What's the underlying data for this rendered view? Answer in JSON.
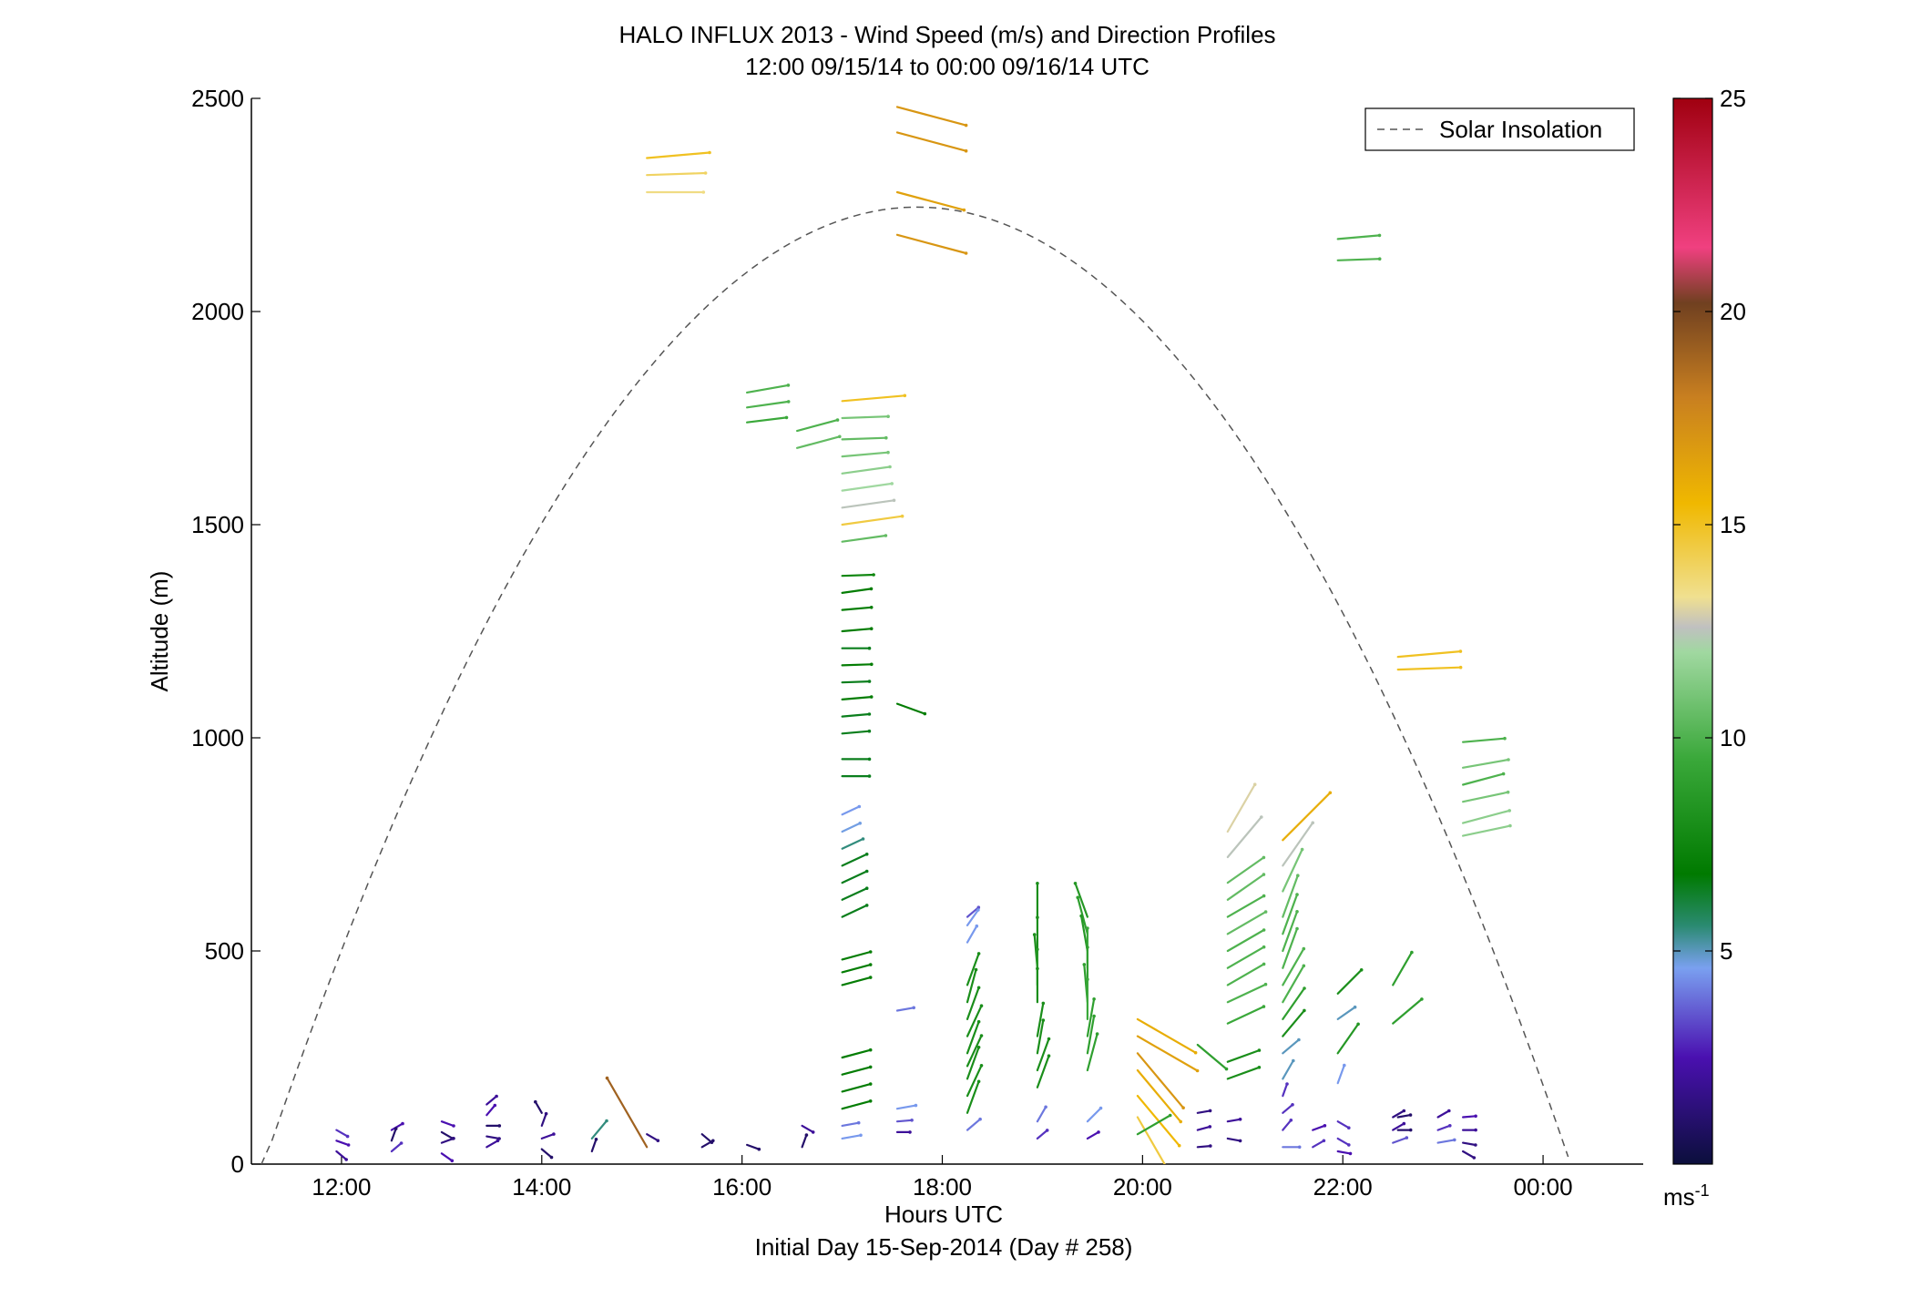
{
  "chart_data": {
    "type": "quiver",
    "title": "HALO INFLUX 2013 - Wind Speed (m/s) and Direction Profiles",
    "subtitle": "12:00 09/15/14 to 00:00 09/16/14  UTC",
    "xlabel": "Hours UTC",
    "xlabel2": "Initial Day 15-Sep-2014 (Day # 258)",
    "ylabel": "Altitude (m)",
    "xlim": [
      11.1,
      25.0
    ],
    "ylim": [
      0,
      2500
    ],
    "x_ticks": [
      {
        "v": 12,
        "label": "12:00"
      },
      {
        "v": 14,
        "label": "14:00"
      },
      {
        "v": 16,
        "label": "16:00"
      },
      {
        "v": 18,
        "label": "18:00"
      },
      {
        "v": 20,
        "label": "20:00"
      },
      {
        "v": 22,
        "label": "22:00"
      },
      {
        "v": 24,
        "label": "00:00"
      }
    ],
    "y_ticks": [
      0,
      500,
      1000,
      1500,
      2000,
      2500
    ],
    "legend": {
      "label": "Solar Insolation",
      "position": "top-right"
    },
    "solar_insolation": {
      "start_hour": 11.2,
      "end_hour": 24.25,
      "peak_hour": 17.75,
      "peak_altitude": 2245
    },
    "colorbar": {
      "min": 0,
      "max": 25,
      "ticks": [
        5,
        10,
        15,
        20,
        25
      ],
      "unit": "ms-1",
      "stops": [
        {
          "v": 0,
          "c": "#0b0f3c"
        },
        {
          "v": 2.5,
          "c": "#4a10b0"
        },
        {
          "v": 4.6,
          "c": "#7aa0f0"
        },
        {
          "v": 5.6,
          "c": "#2a8a70"
        },
        {
          "v": 6.8,
          "c": "#007a00"
        },
        {
          "v": 9.5,
          "c": "#3aa83a"
        },
        {
          "v": 12,
          "c": "#a0d8a0"
        },
        {
          "v": 12.6,
          "c": "#c0c0c0"
        },
        {
          "v": 13.3,
          "c": "#f0e090"
        },
        {
          "v": 15.5,
          "c": "#f0b800"
        },
        {
          "v": 18,
          "c": "#c87f20"
        },
        {
          "v": 20.2,
          "c": "#704020"
        },
        {
          "v": 21.5,
          "c": "#f04080"
        },
        {
          "v": 25,
          "c": "#a00010"
        }
      ]
    },
    "profiles": [
      {
        "t": 11.95,
        "h": [
          80,
          55,
          30
        ],
        "s": [
          3,
          2.5,
          2
        ],
        "d": [
          300,
          290,
          310
        ]
      },
      {
        "t": 12.5,
        "h": [
          80,
          55,
          30
        ],
        "s": [
          2.5,
          1,
          3
        ],
        "d": [
          240,
          200,
          230
        ]
      },
      {
        "t": 13.0,
        "h": [
          100,
          75,
          50,
          25
        ],
        "s": [
          2.5,
          1,
          1.5,
          2.5
        ],
        "d": [
          290,
          300,
          250,
          305
        ]
      },
      {
        "t": 13.45,
        "h": [
          140,
          115,
          90,
          65,
          40
        ],
        "s": [
          2,
          2.5,
          1,
          1.5,
          2
        ],
        "d": [
          230,
          220,
          270,
          280,
          240
        ]
      },
      {
        "t": 14.0,
        "h": [
          120,
          90,
          60,
          35
        ],
        "s": [
          1,
          1.5,
          2,
          1
        ],
        "d": [
          150,
          200,
          250,
          310
        ]
      },
      {
        "t": 14.5,
        "h": [
          60,
          30
        ],
        "s": [
          5.5,
          1
        ],
        "d": [
          220,
          200
        ]
      },
      {
        "t": 15.05,
        "h": [
          2360,
          2320,
          2280
        ],
        "s": [
          15,
          14,
          13.5
        ],
        "d": [
          265,
          268,
          270
        ]
      },
      {
        "t": 15.05,
        "h": [
          70,
          40
        ],
        "s": [
          1.5,
          19
        ],
        "d": [
          300,
          150
        ]
      },
      {
        "t": 15.6,
        "h": [
          70,
          40
        ],
        "s": [
          1,
          1
        ],
        "d": [
          310,
          240
        ]
      },
      {
        "t": 16.05,
        "h": [
          1810,
          1775,
          1740
        ],
        "s": [
          10,
          10,
          9.5
        ],
        "d": [
          260,
          262,
          263
        ]
      },
      {
        "t": 16.05,
        "h": [
          45
        ],
        "s": [
          1
        ],
        "d": [
          290
        ]
      },
      {
        "t": 16.55,
        "h": [
          1720,
          1680
        ],
        "s": [
          10,
          10.5
        ],
        "d": [
          255,
          255
        ]
      },
      {
        "t": 16.6,
        "h": [
          90,
          40
        ],
        "s": [
          2,
          1
        ],
        "d": [
          300,
          200
        ]
      },
      {
        "t": 17.0,
        "h": [
          1790,
          1750,
          1700,
          1660,
          1620,
          1580,
          1540,
          1500,
          1460,
          1380,
          1340,
          1300,
          1250,
          1210,
          1170,
          1130,
          1090,
          1050,
          1010,
          950,
          910,
          820,
          780,
          740,
          700,
          660,
          620,
          580,
          480,
          450,
          420,
          250,
          210,
          170,
          130,
          90,
          60
        ],
        "s": [
          15,
          11,
          10.5,
          11,
          11.5,
          12,
          12.5,
          14.5,
          10.5,
          7.5,
          7,
          7,
          7,
          6.5,
          7,
          6.5,
          7,
          6.5,
          6.5,
          6.5,
          6.5,
          4.5,
          4.7,
          5.5,
          6.5,
          6.5,
          6.5,
          6.5,
          7,
          7,
          7,
          7,
          7,
          7,
          7,
          4,
          4.5
        ],
        "d": [
          265,
          268,
          268,
          265,
          262,
          262,
          262,
          262,
          262,
          268,
          262,
          265,
          265,
          270,
          268,
          268,
          265,
          265,
          265,
          270,
          270,
          245,
          245,
          245,
          245,
          245,
          245,
          245,
          255,
          255,
          255,
          255,
          255,
          255,
          255,
          260,
          260
        ]
      },
      {
        "t": 17.55,
        "h": [
          2480,
          2420,
          2280,
          2180
        ],
        "s": [
          17,
          17,
          16.5,
          17
        ],
        "d": [
          285,
          285,
          285,
          285
        ]
      },
      {
        "t": 17.55,
        "h": [
          1080
        ],
        "s": [
          7
        ],
        "d": [
          290
        ]
      },
      {
        "t": 17.55,
        "h": [
          360,
          130,
          100,
          75
        ],
        "s": [
          4,
          4.5,
          3.5,
          2
        ],
        "d": [
          260,
          260,
          265,
          270
        ]
      },
      {
        "t": 18.25,
        "h": [
          580,
          560,
          520,
          420,
          380,
          340,
          300,
          260,
          230,
          200,
          160,
          120,
          80
        ],
        "s": [
          3.5,
          4.5,
          4.5,
          8,
          8,
          8,
          8,
          8,
          8,
          8,
          8,
          8,
          4
        ],
        "d": [
          230,
          215,
          210,
          200,
          195,
          200,
          205,
          200,
          205,
          200,
          205,
          200,
          230
        ]
      },
      {
        "t": 18.95,
        "h": [
          580,
          500,
          460,
          420,
          380,
          300,
          260,
          220,
          180,
          100,
          60
        ],
        "s": [
          8,
          8,
          8,
          8.5,
          8,
          8,
          8,
          8,
          8,
          4,
          3
        ],
        "d": [
          180,
          180,
          175,
          180,
          180,
          190,
          190,
          200,
          200,
          210,
          230
        ]
      },
      {
        "t": 19.45,
        "h": [
          580,
          540,
          500,
          460,
          420,
          380,
          340,
          300,
          260,
          220,
          100,
          60
        ],
        "s": [
          8.5,
          9,
          8.5,
          9.5,
          9,
          9,
          9.5,
          9,
          9,
          9,
          4.5,
          2.5
        ],
        "d": [
          160,
          165,
          170,
          180,
          180,
          175,
          180,
          190,
          190,
          195,
          225,
          240
        ]
      },
      {
        "t": 19.95,
        "h": [
          340,
          300,
          260,
          220,
          160,
          110,
          70
        ],
        "s": [
          16,
          16.5,
          17,
          16,
          15.5,
          14.5,
          9
        ],
        "d": [
          300,
          300,
          320,
          320,
          320,
          330,
          240
        ]
      },
      {
        "t": 20.55,
        "h": [
          280,
          120,
          80,
          40
        ],
        "s": [
          9,
          1.5,
          2,
          1.5
        ],
        "d": [
          310,
          260,
          255,
          265
        ]
      },
      {
        "t": 20.85,
        "h": [
          780,
          720,
          660,
          620,
          580,
          540,
          500,
          460,
          420,
          380,
          330,
          240,
          200,
          100,
          60
        ],
        "s": [
          13,
          12.5,
          10.5,
          10.5,
          10,
          10.5,
          10,
          10,
          10,
          10,
          9.5,
          8,
          8,
          2,
          1.5
        ],
        "d": [
          210,
          220,
          235,
          235,
          240,
          240,
          240,
          240,
          240,
          245,
          245,
          250,
          250,
          260,
          280
        ]
      },
      {
        "t": 21.4,
        "h": [
          760,
          700,
          640,
          580,
          540,
          500,
          460,
          420,
          380,
          340,
          300,
          260,
          200,
          160,
          120,
          80,
          40
        ],
        "s": [
          16,
          12.5,
          11,
          10.5,
          10,
          10,
          10,
          10,
          10,
          9,
          8,
          5,
          5,
          3,
          3,
          3,
          4
        ],
        "d": [
          225,
          215,
          205,
          200,
          200,
          200,
          200,
          210,
          210,
          215,
          220,
          230,
          210,
          200,
          230,
          220,
          270
        ]
      },
      {
        "t": 21.7,
        "h": [
          80,
          40
        ],
        "s": [
          2.5,
          3
        ],
        "d": [
          250,
          240
        ]
      },
      {
        "t": 21.95,
        "h": [
          2170,
          2120
        ],
        "s": [
          10,
          10
        ],
        "d": [
          265,
          268
        ]
      },
      {
        "t": 21.95,
        "h": [
          400,
          340,
          260,
          190
        ],
        "s": [
          8,
          5,
          8.5,
          4.5
        ],
        "d": [
          225,
          235,
          215,
          200
        ]
      },
      {
        "t": 21.95,
        "h": [
          100,
          60,
          30
        ],
        "s": [
          3,
          3,
          2.5
        ],
        "d": [
          300,
          300,
          280
        ]
      },
      {
        "t": 22.5,
        "h": [
          420,
          330,
          110,
          80,
          50
        ],
        "s": [
          9,
          9,
          1.5,
          2,
          3.5
        ],
        "d": [
          210,
          230,
          240,
          240,
          250
        ]
      },
      {
        "t": 22.55,
        "h": [
          1190,
          1160
        ],
        "s": [
          15,
          15
        ],
        "d": [
          265,
          268
        ]
      },
      {
        "t": 22.55,
        "h": [
          110,
          80
        ],
        "s": [
          1,
          1
        ],
        "d": [
          260,
          270
        ]
      },
      {
        "t": 22.95,
        "h": [
          110,
          80,
          50
        ],
        "s": [
          2,
          3,
          4
        ],
        "d": [
          240,
          250,
          260
        ]
      },
      {
        "t": 23.2,
        "h": [
          990,
          930,
          890,
          850,
          800,
          770
        ],
        "s": [
          10,
          11,
          10,
          11,
          11.5,
          11.5
        ],
        "d": [
          265,
          260,
          255,
          258,
          255,
          258
        ]
      },
      {
        "t": 23.2,
        "h": [
          110,
          80,
          50,
          30
        ],
        "s": [
          2.5,
          2,
          1.5,
          1.5
        ],
        "d": [
          265,
          270,
          280,
          300
        ]
      }
    ]
  }
}
